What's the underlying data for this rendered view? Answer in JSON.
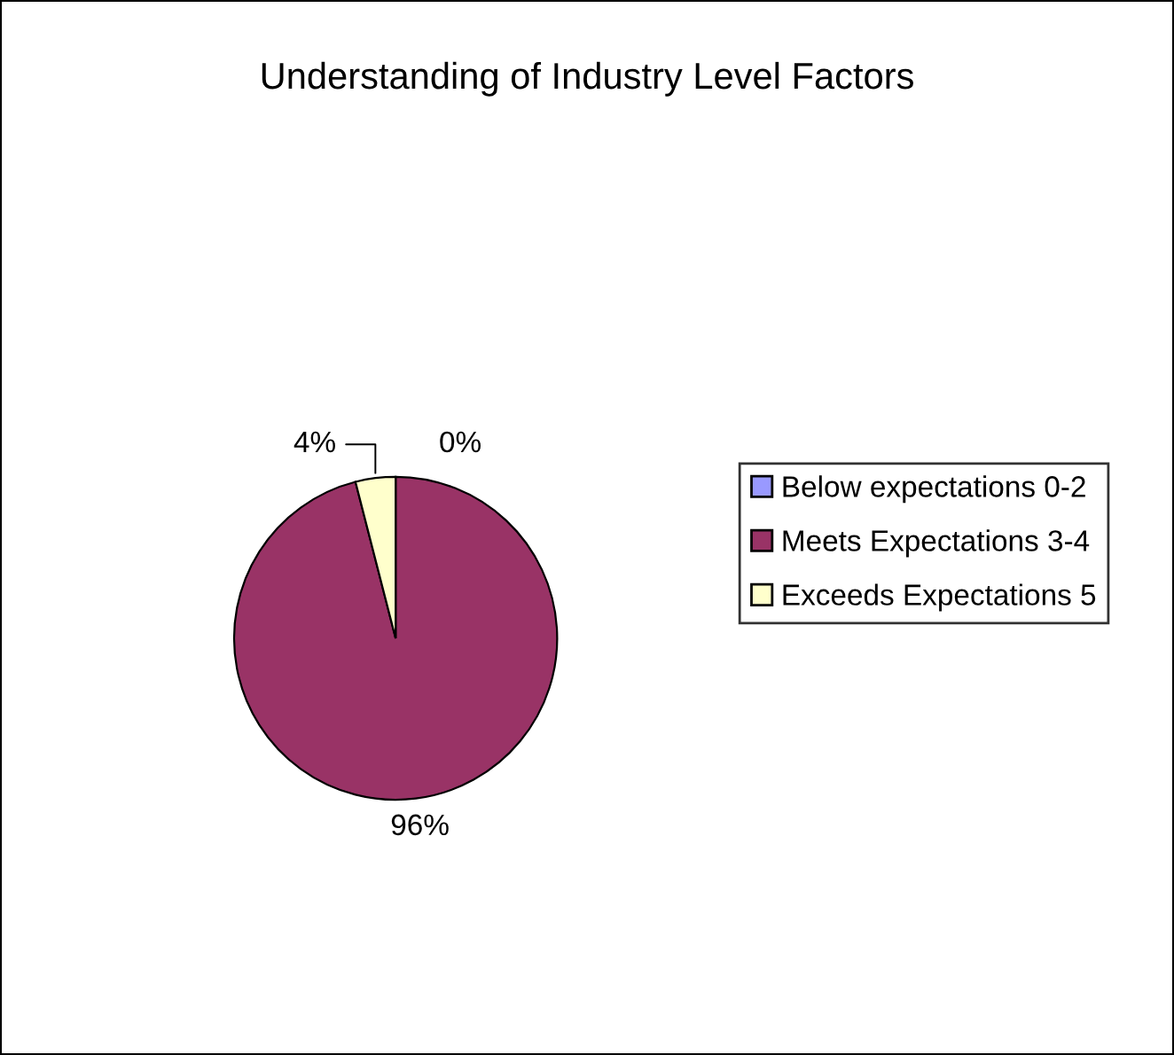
{
  "chart_data": {
    "type": "pie",
    "title": "Understanding of Industry Level Factors",
    "categories": [
      "Below expectations 0-2",
      "Meets Expectations 3-4",
      "Exceeds Expectations 5"
    ],
    "values": [
      0,
      96,
      4
    ],
    "colors": [
      "#9999ff",
      "#993366",
      "#ffffcc"
    ],
    "value_labels": [
      "0%",
      "96%",
      "4%"
    ],
    "legend": "right"
  }
}
